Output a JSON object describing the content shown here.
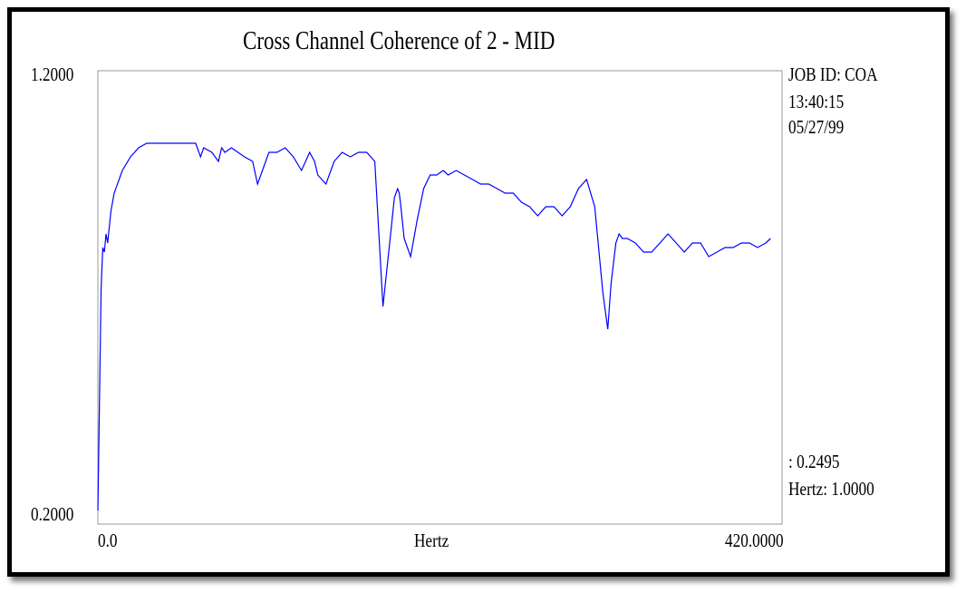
{
  "chart_data": {
    "type": "line",
    "title": "Cross Channel Coherence of  2 - MID",
    "xlabel": "Hertz",
    "ylabel": "",
    "xlim": [
      0,
      420
    ],
    "ylim": [
      0.2,
      1.2
    ],
    "x_tick_labels": [
      "0.0",
      "420.0000"
    ],
    "y_tick_labels": [
      "0.2000",
      "1.2000"
    ],
    "grid": false,
    "line_color": "#0000ff",
    "series": [
      {
        "x": [
          0,
          2,
          3,
          4,
          5,
          6,
          8,
          10,
          15,
          20,
          25,
          30,
          40,
          50,
          60,
          63,
          65,
          70,
          74,
          76,
          78,
          82,
          86,
          90,
          95,
          98,
          100,
          105,
          110,
          115,
          120,
          125,
          130,
          133,
          135,
          140,
          145,
          150,
          155,
          160,
          165,
          170,
          175,
          180,
          182,
          184,
          185,
          186,
          188,
          192,
          196,
          200,
          204,
          208,
          212,
          215,
          220,
          225,
          230,
          235,
          240,
          245,
          250,
          255,
          260,
          265,
          270,
          275,
          280,
          285,
          290,
          295,
          300,
          305,
          310,
          313,
          315,
          318,
          320,
          322,
          325,
          330,
          335,
          340,
          345,
          350,
          355,
          360,
          365,
          370,
          375,
          380,
          385,
          390,
          395,
          400,
          405,
          410,
          413
        ],
        "y": [
          0.23,
          0.72,
          0.81,
          0.8,
          0.84,
          0.82,
          0.89,
          0.93,
          0.98,
          1.01,
          1.03,
          1.04,
          1.04,
          1.04,
          1.04,
          1.01,
          1.03,
          1.02,
          1.0,
          1.03,
          1.02,
          1.03,
          1.02,
          1.01,
          1.0,
          0.95,
          0.97,
          1.02,
          1.02,
          1.03,
          1.01,
          0.98,
          1.02,
          1.0,
          0.97,
          0.95,
          1.0,
          1.02,
          1.01,
          1.02,
          1.02,
          1.0,
          0.68,
          0.85,
          0.92,
          0.94,
          0.93,
          0.9,
          0.83,
          0.79,
          0.87,
          0.94,
          0.97,
          0.97,
          0.98,
          0.97,
          0.98,
          0.97,
          0.96,
          0.95,
          0.95,
          0.94,
          0.93,
          0.93,
          0.91,
          0.9,
          0.88,
          0.9,
          0.9,
          0.88,
          0.9,
          0.94,
          0.96,
          0.9,
          0.71,
          0.63,
          0.73,
          0.82,
          0.84,
          0.83,
          0.83,
          0.82,
          0.8,
          0.8,
          0.82,
          0.84,
          0.82,
          0.8,
          0.82,
          0.82,
          0.79,
          0.8,
          0.81,
          0.81,
          0.82,
          0.82,
          0.81,
          0.82,
          0.83
        ]
      }
    ],
    "annotations": {
      "job_id": "JOB ID: COA",
      "time": "13:40:15",
      "date": "05/27/99",
      "cursor_value": ": 0.2495",
      "cursor_hertz": "Hertz: 1.0000"
    }
  }
}
